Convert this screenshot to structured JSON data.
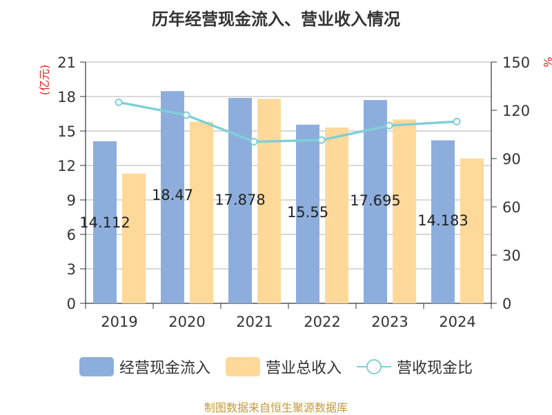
{
  "chart_data": {
    "type": "bar",
    "title": "历年经营现金流入、营业收入情况",
    "categories": [
      "2019",
      "2020",
      "2021",
      "2022",
      "2023",
      "2024"
    ],
    "series": [
      {
        "name": "经营现金流入",
        "type": "bar",
        "axis": "left",
        "color": "#8DAEDC",
        "values": [
          14.112,
          18.47,
          17.878,
          15.55,
          17.695,
          14.183
        ],
        "labels": [
          "14.112",
          "18.47",
          "17.878",
          "15.55",
          "17.695",
          "14.183"
        ]
      },
      {
        "name": "营业总收入",
        "type": "bar",
        "axis": "left",
        "color": "#FFD999",
        "values": [
          11.3,
          15.8,
          17.8,
          15.3,
          16.0,
          12.6
        ]
      },
      {
        "name": "营收现金比",
        "type": "line",
        "axis": "right",
        "color": "#80CFD6",
        "values": [
          125,
          117,
          100.5,
          101.5,
          110.5,
          113
        ]
      }
    ],
    "y_left": {
      "label": "(亿元)",
      "ylim": [
        0,
        21
      ],
      "ticks": [
        "0",
        "3",
        "6",
        "9",
        "12",
        "15",
        "18",
        "21"
      ]
    },
    "y_right": {
      "label": "%",
      "ylim": [
        0,
        150
      ],
      "ticks": [
        "0",
        "30",
        "60",
        "90",
        "120",
        "150"
      ]
    },
    "grid": true,
    "legend_position": "bottom"
  },
  "source_text": "制图数据来自恒生聚源数据库"
}
